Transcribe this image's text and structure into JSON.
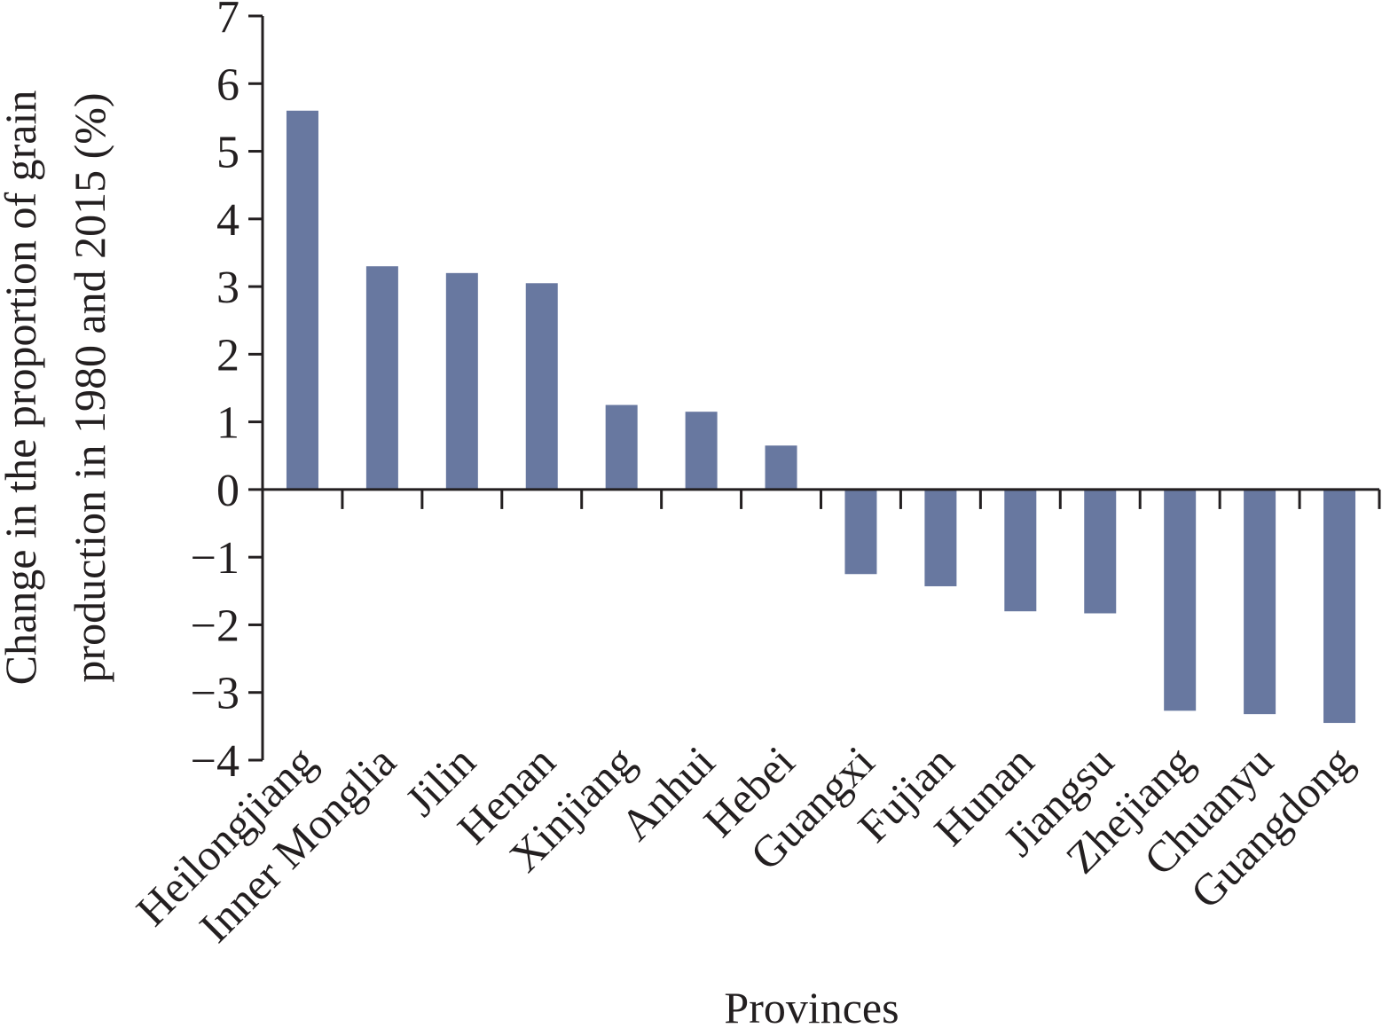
{
  "chart_data": {
    "type": "bar",
    "title": "",
    "xlabel": "Provinces",
    "ylabel_lines": [
      "Change in the proportion of grain",
      "production in 1980 and 2015 (%)"
    ],
    "ylim": [
      -4,
      7
    ],
    "yticks": [
      {
        "value": 7,
        "label": "7"
      },
      {
        "value": 6,
        "label": "6"
      },
      {
        "value": 5,
        "label": "5"
      },
      {
        "value": 4,
        "label": "4"
      },
      {
        "value": 3,
        "label": "3"
      },
      {
        "value": 2,
        "label": "2"
      },
      {
        "value": 1,
        "label": "1"
      },
      {
        "value": 0,
        "label": "0"
      },
      {
        "value": -1,
        "label": "−1"
      },
      {
        "value": -2,
        "label": "−2"
      },
      {
        "value": -3,
        "label": "−3"
      },
      {
        "value": -4,
        "label": "−4"
      }
    ],
    "categories": [
      "Heilongjiang",
      "Inner Monglia",
      "Jilin",
      "Henan",
      "Xinjiang",
      "Anhui",
      "Hebei",
      "Guangxi",
      "Fujian",
      "Hunan",
      "Jiangsu",
      "Zhejiang",
      "Chuanyu",
      "Guangdong"
    ],
    "values": [
      5.6,
      3.3,
      3.2,
      3.05,
      1.25,
      1.15,
      0.65,
      -1.25,
      -1.43,
      -1.8,
      -1.83,
      -3.27,
      -3.32,
      -3.45
    ],
    "bar_color": "#6878a0",
    "axis_color": "#231f20",
    "grid": false,
    "legend": "none"
  }
}
